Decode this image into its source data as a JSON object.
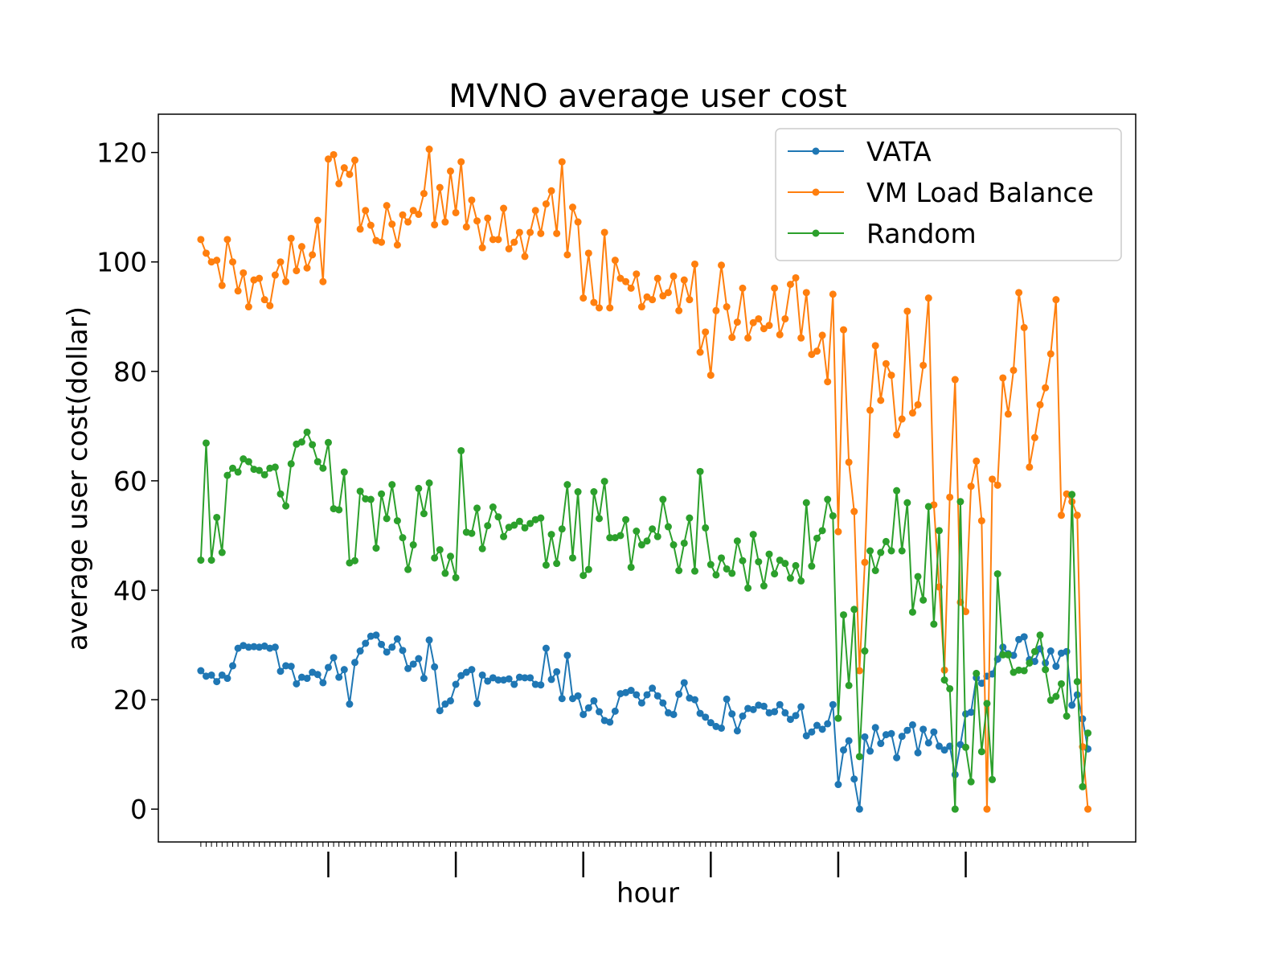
{
  "chart_data": {
    "type": "line",
    "title": "MVNO average user cost",
    "xlabel": "hour",
    "ylabel": "average user cost(dollar)",
    "ylim": [
      -6,
      127
    ],
    "yticks": [
      0,
      20,
      40,
      60,
      80,
      100,
      120
    ],
    "xlim": [
      -8,
      176
    ],
    "minor_xticks": [
      0,
      167
    ],
    "major_xticks": [
      24,
      48,
      72,
      96,
      120,
      144
    ],
    "grid": false,
    "legend": "top-right",
    "marker": "circle",
    "series": [
      {
        "name": "VATA",
        "color": "#1f77b4",
        "values": [
          25.3,
          24.3,
          24.5,
          23.3,
          24.5,
          23.9,
          26.2,
          29.4,
          29.9,
          29.6,
          29.7,
          29.6,
          29.8,
          29.4,
          29.6,
          25.2,
          26.2,
          26.1,
          22.9,
          24.1,
          23.9,
          25.0,
          24.6,
          23.1,
          25.9,
          27.7,
          24.1,
          25.5,
          19.2,
          26.8,
          28.9,
          30.3,
          31.6,
          31.8,
          30.1,
          28.7,
          29.6,
          31.1,
          29.0,
          25.7,
          26.5,
          27.5,
          23.9,
          30.9,
          26.0,
          18.0,
          19.2,
          19.8,
          22.8,
          24.4,
          25.0,
          25.5,
          19.3,
          24.5,
          23.4,
          24.0,
          23.6,
          23.6,
          23.8,
          22.8,
          24.1,
          24.0,
          24.0,
          22.8,
          22.7,
          29.4,
          23.7,
          25.1,
          20.2,
          28.1,
          20.2,
          20.7,
          17.3,
          18.5,
          19.8,
          17.8,
          16.2,
          15.9,
          17.9,
          21.1,
          21.3,
          21.7,
          20.9,
          19.4,
          20.9,
          22.1,
          20.7,
          19.4,
          17.6,
          17.3,
          21.0,
          23.1,
          20.3,
          20.0,
          17.5,
          16.8,
          15.8,
          15.1,
          14.8,
          20.1,
          17.4,
          14.3,
          17.0,
          18.4,
          18.2,
          19.0,
          18.8,
          17.6,
          17.8,
          19.1,
          17.6,
          16.4,
          17.1,
          18.7,
          13.4,
          14.1,
          15.3,
          14.6,
          15.6,
          19.1,
          4.5,
          10.8,
          12.5,
          5.5,
          0.0,
          13.2,
          10.6,
          14.9,
          12.0,
          13.6,
          13.8,
          9.4,
          13.3,
          14.4,
          15.4,
          10.3,
          14.6,
          12.1,
          14.1,
          11.5,
          10.8,
          11.5,
          6.3,
          11.8,
          17.4,
          17.7,
          24.0,
          23.0,
          24.3,
          24.7,
          27.4,
          29.6,
          28.4,
          28.1,
          31.0,
          31.5,
          27.3,
          27.0,
          29.3,
          26.7,
          28.9,
          26.1,
          28.5,
          28.8,
          19.0,
          20.9,
          16.5,
          11.0
        ]
      },
      {
        "name": "VM Load Balance",
        "color": "#ff7f0e",
        "values": [
          104.1,
          101.6,
          100.0,
          100.3,
          95.7,
          104.1,
          100.0,
          94.7,
          98.0,
          91.8,
          96.7,
          97.0,
          93.1,
          92.0,
          97.6,
          100.0,
          96.4,
          104.3,
          98.4,
          102.8,
          98.9,
          101.3,
          107.6,
          96.4,
          118.8,
          119.6,
          114.3,
          117.2,
          116.0,
          118.6,
          106.0,
          109.4,
          106.7,
          103.9,
          103.6,
          110.3,
          106.9,
          103.1,
          108.6,
          107.3,
          109.4,
          108.7,
          112.5,
          120.6,
          106.8,
          113.6,
          107.3,
          116.6,
          109.0,
          118.3,
          106.4,
          111.3,
          107.5,
          102.6,
          108.0,
          104.1,
          104.1,
          109.8,
          102.4,
          103.6,
          105.4,
          101.0,
          105.4,
          109.4,
          105.2,
          110.6,
          113.0,
          105.2,
          118.3,
          101.3,
          110.0,
          107.3,
          93.4,
          101.6,
          92.6,
          91.6,
          105.4,
          91.6,
          100.3,
          97.0,
          96.4,
          95.2,
          97.8,
          91.8,
          93.6,
          93.1,
          97.0,
          93.8,
          94.4,
          97.4,
          91.1,
          96.7,
          93.1,
          99.6,
          83.5,
          87.2,
          79.3,
          91.1,
          99.4,
          91.8,
          86.2,
          89.0,
          95.2,
          86.1,
          88.9,
          89.6,
          87.8,
          88.4,
          95.2,
          86.7,
          89.6,
          95.9,
          97.1,
          86.1,
          94.4,
          83.1,
          83.7,
          86.6,
          78.1,
          94.1,
          50.7,
          87.6,
          63.4,
          54.4,
          25.3,
          45.1,
          72.9,
          84.7,
          74.7,
          81.4,
          79.3,
          68.4,
          71.3,
          91.0,
          72.4,
          73.9,
          81.1,
          93.4,
          55.6,
          40.6,
          25.4,
          57.0,
          78.5,
          37.8,
          36.1,
          59.0,
          63.6,
          52.7,
          0.0,
          60.3,
          59.2,
          78.8,
          72.2,
          80.2,
          94.4,
          88.0,
          62.5,
          67.9,
          73.9,
          77.0,
          83.2,
          93.1,
          53.7,
          57.6,
          56.2,
          53.7,
          11.4,
          0.0
        ]
      },
      {
        "name": "Random",
        "color": "#2ca02c",
        "values": [
          45.5,
          66.9,
          45.5,
          53.3,
          46.9,
          61.0,
          62.3,
          61.6,
          64.0,
          63.5,
          62.1,
          61.9,
          61.1,
          62.3,
          62.5,
          57.6,
          55.4,
          63.1,
          66.7,
          67.1,
          68.9,
          66.6,
          63.5,
          62.3,
          67.0,
          54.9,
          54.7,
          61.6,
          45.0,
          45.4,
          58.1,
          56.7,
          56.6,
          47.7,
          57.6,
          53.1,
          59.3,
          52.7,
          49.6,
          43.8,
          48.3,
          58.6,
          54.0,
          59.6,
          45.9,
          47.4,
          43.1,
          46.2,
          42.3,
          65.5,
          50.6,
          50.4,
          55.0,
          47.6,
          51.8,
          55.2,
          53.4,
          49.8,
          51.5,
          51.9,
          52.6,
          51.4,
          52.2,
          52.9,
          53.2,
          44.6,
          50.2,
          44.9,
          51.2,
          59.3,
          45.9,
          58.0,
          42.7,
          43.8,
          58.0,
          53.1,
          59.9,
          49.6,
          49.6,
          50.0,
          52.9,
          44.2,
          50.8,
          48.3,
          49.0,
          51.2,
          49.8,
          56.6,
          51.6,
          48.3,
          43.6,
          48.6,
          53.2,
          43.5,
          61.7,
          51.4,
          44.7,
          42.8,
          45.9,
          43.9,
          43.1,
          49.0,
          45.4,
          40.4,
          50.2,
          45.2,
          40.8,
          46.6,
          43.0,
          45.5,
          44.9,
          42.2,
          44.5,
          41.7,
          56.0,
          44.4,
          49.5,
          50.9,
          56.6,
          53.6,
          16.6,
          35.5,
          22.6,
          36.5,
          9.6,
          28.9,
          47.2,
          43.6,
          46.9,
          48.9,
          47.2,
          58.2,
          47.2,
          56.0,
          36.0,
          42.5,
          38.2,
          55.3,
          33.8,
          50.9,
          23.6,
          22.0,
          0.0,
          56.2,
          11.3,
          5.0,
          24.8,
          10.5,
          19.3,
          5.4,
          43.0,
          28.2,
          28.2,
          25.0,
          25.4,
          25.3,
          26.7,
          28.8,
          31.8,
          25.5,
          19.9,
          20.6,
          22.9,
          17.0,
          57.5,
          23.3,
          4.1,
          13.9
        ]
      }
    ]
  }
}
